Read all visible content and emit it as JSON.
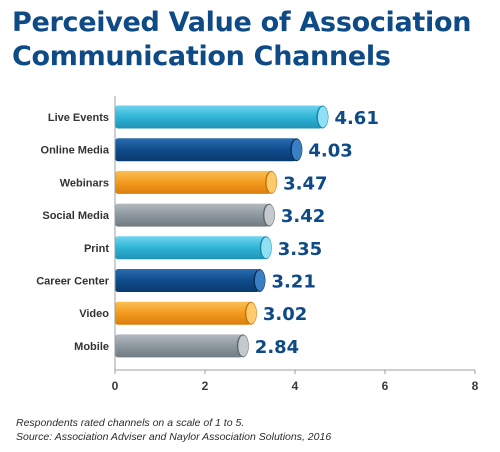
{
  "header": {
    "title_line1": "Perceived Value of Association",
    "title_line2": "Communication Channels"
  },
  "footer": {
    "note": "Respondents rated channels on a scale of 1 to 5.",
    "source": "Source: Association Adviser and Naylor Association Solutions, 2016"
  },
  "colors": {
    "cyan": "#2fb4d6",
    "navy": "#0f4c8c",
    "orange": "#f39a1e",
    "gray": "#8d979e",
    "value_text": "#0d4a86"
  },
  "chart_data": {
    "type": "bar",
    "orientation": "horizontal",
    "title": "Perceived Value of Association Communication Channels",
    "categories": [
      "Live Events",
      "Online Media",
      "Webinars",
      "Social Media",
      "Print",
      "Career Center",
      "Video",
      "Mobile"
    ],
    "values": [
      4.61,
      4.03,
      3.47,
      3.42,
      3.35,
      3.21,
      3.02,
      2.84
    ],
    "value_labels": [
      "4.61",
      "4.03",
      "3.47",
      "3.42",
      "3.35",
      "3.21",
      "3.02",
      "2.84"
    ],
    "bar_colors": [
      "cyan",
      "navy",
      "orange",
      "gray",
      "cyan",
      "navy",
      "orange",
      "gray"
    ],
    "xlim": [
      0,
      8
    ],
    "xticks": [
      "0",
      "2",
      "4",
      "6",
      "8"
    ],
    "grid": false,
    "legend": "none"
  }
}
